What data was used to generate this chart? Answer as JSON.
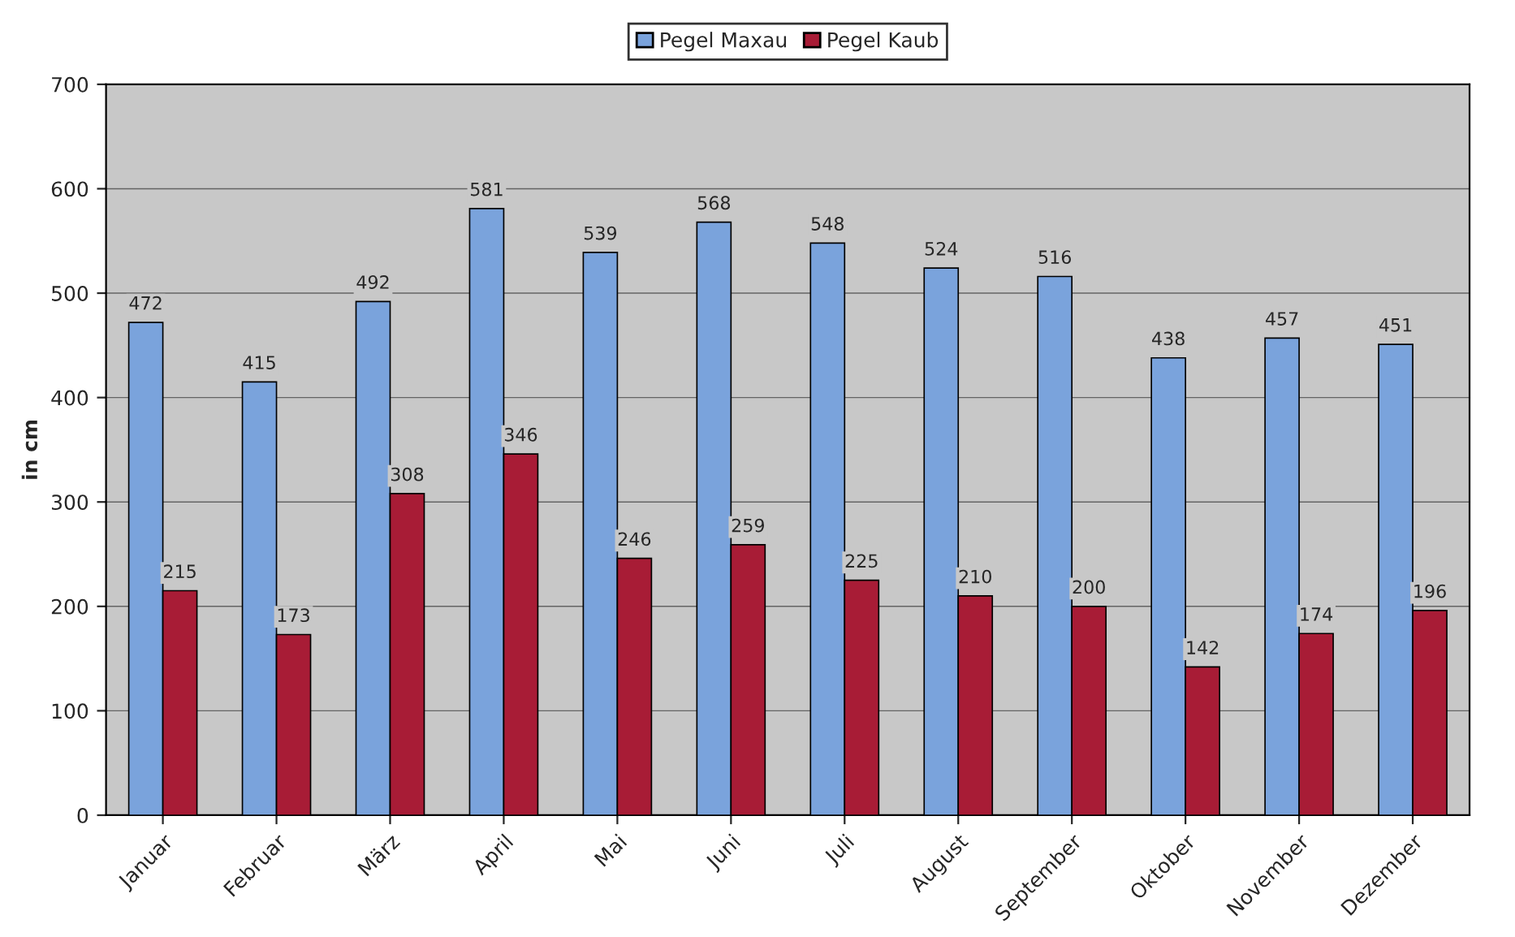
{
  "chart_data": {
    "type": "bar",
    "categories": [
      "Januar",
      "Februar",
      "März",
      "April",
      "Mai",
      "Juni",
      "Juli",
      "August",
      "September",
      "Oktober",
      "November",
      "Dezember"
    ],
    "series": [
      {
        "name": "Pegel Maxau",
        "color": "#7aa3dc",
        "values": [
          472,
          415,
          492,
          581,
          539,
          568,
          548,
          524,
          516,
          438,
          457,
          451
        ]
      },
      {
        "name": "Pegel Kaub",
        "color": "#a81c36",
        "values": [
          215,
          173,
          308,
          346,
          246,
          259,
          225,
          210,
          200,
          142,
          174,
          196
        ]
      }
    ],
    "ylabel": "in cm",
    "ylim": [
      0,
      700
    ],
    "yticks": [
      0,
      100,
      200,
      300,
      400,
      500,
      600,
      700
    ],
    "grid": "y",
    "legend": "top",
    "data_labels": true
  }
}
